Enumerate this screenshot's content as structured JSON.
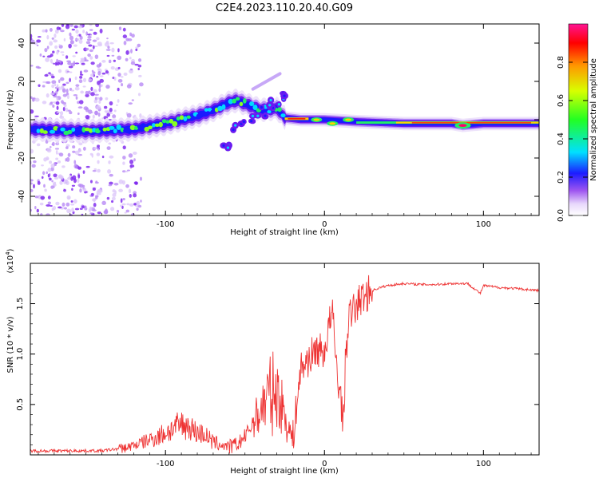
{
  "title": "C2E4.2023.110.20.40.G09",
  "chart_data": [
    {
      "type": "heatmap",
      "xlabel": "Height of straight line (km)",
      "ylabel": "Frequency (Hz)",
      "xlim": [
        -185,
        135
      ],
      "ylim": [
        -50,
        50
      ],
      "xticks": [
        -100,
        0,
        100
      ],
      "yticks": [
        -40,
        -20,
        0,
        20,
        40
      ],
      "colorbar": {
        "label": "Normalized spectral amplitude",
        "range": [
          0,
          1
        ],
        "ticks": [
          "0.0",
          "0.2",
          "0.4",
          "0.6",
          "0.8"
        ]
      },
      "ridge": [
        [
          -185,
          -5
        ],
        [
          -150,
          -6
        ],
        [
          -120,
          -5
        ],
        [
          -100,
          -2
        ],
        [
          -80,
          2
        ],
        [
          -70,
          5
        ],
        [
          -60,
          9
        ],
        [
          -55,
          10
        ],
        [
          -40,
          5
        ],
        [
          -30,
          6
        ],
        [
          -25,
          1
        ],
        [
          -15,
          0
        ],
        [
          0,
          0
        ],
        [
          20,
          -1
        ],
        [
          50,
          -2
        ],
        [
          80,
          -2
        ],
        [
          87,
          -3
        ],
        [
          100,
          -2
        ],
        [
          135,
          -2
        ]
      ]
    },
    {
      "type": "line",
      "xlabel": "Height of straight line (km)",
      "ylabel": "SNR (10 * v/v)",
      "y_multiplier": "(x10",
      "y_multiplier_exp": "4",
      "y_multiplier_close": ")",
      "xlim": [
        -185,
        135
      ],
      "ylim": [
        0,
        1.9
      ],
      "xticks": [
        -100,
        0,
        100
      ],
      "yticks": [
        "0.5",
        "1.0",
        "1.5"
      ],
      "series": [
        {
          "color": "#ee3333",
          "x": [
            -185,
            -170,
            -150,
            -140,
            -125,
            -115,
            -105,
            -95,
            -90,
            -85,
            -80,
            -75,
            -70,
            -65,
            -60,
            -55,
            -50,
            -45,
            -40,
            -35,
            -30,
            -25,
            -20,
            -15,
            -10,
            -5,
            0,
            3,
            5,
            8,
            10,
            12,
            13,
            15,
            20,
            25,
            30,
            35,
            40,
            50,
            60,
            70,
            80,
            90,
            95,
            98,
            100,
            110,
            120,
            135
          ],
          "y": [
            0.04,
            0.04,
            0.04,
            0.04,
            0.07,
            0.12,
            0.18,
            0.26,
            0.3,
            0.28,
            0.22,
            0.2,
            0.12,
            0.1,
            0.08,
            0.1,
            0.18,
            0.32,
            0.45,
            0.6,
            0.62,
            0.4,
            0.14,
            0.85,
            0.95,
            1.05,
            1.02,
            1.3,
            1.4,
            0.8,
            0.6,
            0.3,
            0.85,
            1.35,
            1.48,
            1.58,
            1.63,
            1.66,
            1.68,
            1.7,
            1.69,
            1.69,
            1.7,
            1.7,
            1.64,
            1.6,
            1.68,
            1.66,
            1.65,
            1.63
          ]
        }
      ]
    }
  ]
}
